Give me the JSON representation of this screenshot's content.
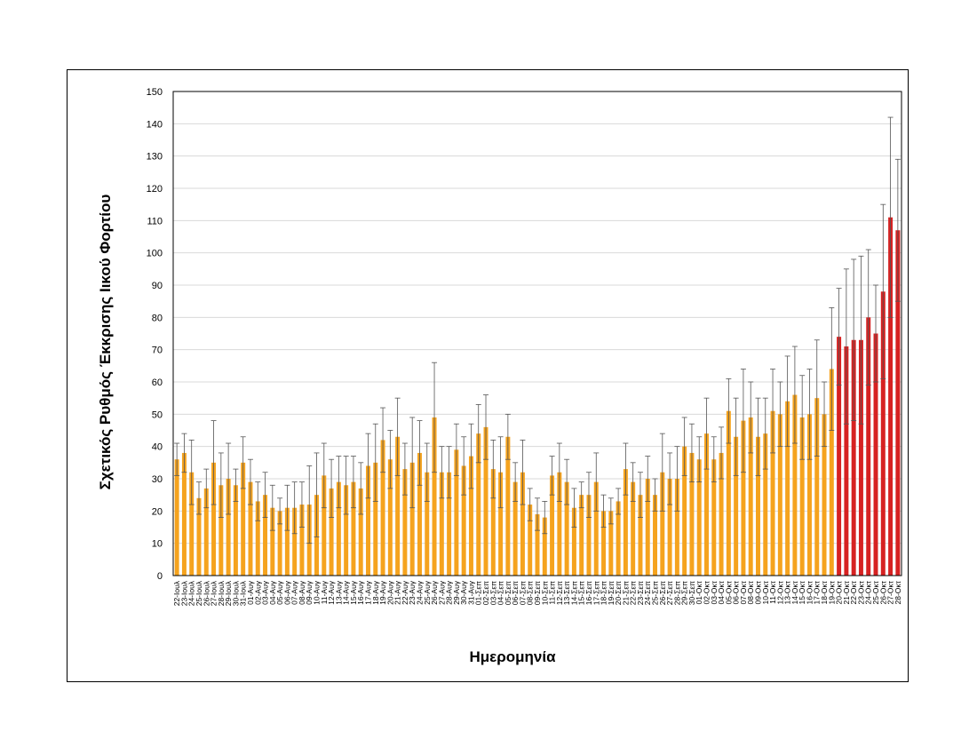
{
  "chart_data": {
    "type": "bar",
    "y_label": "Σχετικός Ρυθμός Έκκρισης Ιικού Φορτίου",
    "x_label": "Ημερομηνία",
    "categories": [
      "22-Ιουλ",
      "23-Ιουλ",
      "24-Ιουλ",
      "25-Ιουλ",
      "26-Ιουλ",
      "27-Ιουλ",
      "28-Ιουλ",
      "29-Ιουλ",
      "30-Ιουλ",
      "31-Ιουλ",
      "01-Αυγ",
      "02-Αυγ",
      "03-Αυγ",
      "04-Αυγ",
      "05-Αυγ",
      "06-Αυγ",
      "07-Αυγ",
      "08-Αυγ",
      "09-Αυγ",
      "10-Αυγ",
      "11-Αυγ",
      "12-Αυγ",
      "13-Αυγ",
      "14-Αυγ",
      "15-Αυγ",
      "16-Αυγ",
      "17-Αυγ",
      "18-Αυγ",
      "19-Αυγ",
      "20-Αυγ",
      "21-Αυγ",
      "22-Αυγ",
      "23-Αυγ",
      "24-Αυγ",
      "25-Αυγ",
      "26-Αυγ",
      "27-Αυγ",
      "28-Αυγ",
      "29-Αυγ",
      "30-Αυγ",
      "31-Αυγ",
      "01-Σεπ",
      "02-Σεπ",
      "03-Σεπ",
      "04-Σεπ",
      "05-Σεπ",
      "06-Σεπ",
      "07-Σεπ",
      "08-Σεπ",
      "09-Σεπ",
      "10-Σεπ",
      "11-Σεπ",
      "12-Σεπ",
      "13-Σεπ",
      "14-Σεπ",
      "15-Σεπ",
      "16-Σεπ",
      "17-Σεπ",
      "18-Σεπ",
      "19-Σεπ",
      "20-Σεπ",
      "21-Σεπ",
      "22-Σεπ",
      "23-Σεπ",
      "24-Σεπ",
      "25-Σεπ",
      "26-Σεπ",
      "27-Σεπ",
      "28-Σεπ",
      "29-Σεπ",
      "30-Σεπ",
      "01-Οκτ",
      "02-Οκτ",
      "03-Οκτ",
      "04-Οκτ",
      "05-Οκτ",
      "06-Οκτ",
      "07-Οκτ",
      "08-Οκτ",
      "09-Οκτ",
      "10-Οκτ",
      "11-Οκτ",
      "12-Οκτ",
      "13-Οκτ",
      "14-Οκτ",
      "15-Οκτ",
      "16-Οκτ",
      "17-Οκτ",
      "18-Οκτ",
      "19-Οκτ",
      "20-Οκτ",
      "21-Οκτ",
      "22-Οκτ",
      "23-Οκτ",
      "24-Οκτ",
      "25-Οκτ",
      "26-Οκτ",
      "27-Οκτ",
      "28-Οκτ"
    ],
    "values": [
      36,
      38,
      32,
      24,
      27,
      35,
      28,
      30,
      28,
      35,
      29,
      23,
      25,
      21,
      20,
      21,
      21,
      22,
      22,
      25,
      31,
      27,
      29,
      28,
      29,
      27,
      34,
      35,
      42,
      36,
      43,
      33,
      35,
      38,
      32,
      49,
      32,
      32,
      39,
      34,
      37,
      44,
      46,
      33,
      32,
      43,
      29,
      32,
      22,
      19,
      18,
      31,
      32,
      29,
      21,
      25,
      25,
      29,
      20,
      20,
      23,
      33,
      29,
      25,
      30,
      25,
      32,
      30,
      30,
      40,
      38,
      36,
      44,
      36,
      38,
      51,
      43,
      48,
      49,
      43,
      44,
      51,
      50,
      54,
      56,
      49,
      50,
      55,
      50,
      64,
      74,
      71,
      73,
      73,
      80,
      75,
      88,
      111,
      107
    ],
    "errors": [
      5,
      6,
      10,
      5,
      6,
      13,
      10,
      11,
      5,
      8,
      7,
      6,
      7,
      7,
      4,
      7,
      8,
      7,
      12,
      13,
      10,
      9,
      8,
      9,
      8,
      8,
      10,
      12,
      10,
      9,
      12,
      8,
      14,
      10,
      9,
      17,
      8,
      8,
      8,
      9,
      10,
      9,
      10,
      9,
      11,
      7,
      6,
      10,
      5,
      5,
      5,
      6,
      9,
      7,
      6,
      4,
      7,
      9,
      5,
      4,
      4,
      8,
      6,
      7,
      7,
      5,
      12,
      8,
      10,
      9,
      9,
      7,
      11,
      7,
      8,
      10,
      12,
      16,
      11,
      12,
      11,
      13,
      10,
      14,
      15,
      13,
      14,
      18,
      10,
      19,
      15,
      24,
      25,
      26,
      21,
      15,
      27,
      31,
      22
    ],
    "colors": [
      "#f5a31e",
      "#f5a31e",
      "#f5a31e",
      "#f5a31e",
      "#f5a31e",
      "#f5a31e",
      "#f5a31e",
      "#f5a31e",
      "#f5a31e",
      "#f5a31e",
      "#f5a31e",
      "#f5a31e",
      "#f5a31e",
      "#f5a31e",
      "#f5a31e",
      "#f5a31e",
      "#f5a31e",
      "#f5a31e",
      "#f5a31e",
      "#f5a31e",
      "#f5a31e",
      "#f5a31e",
      "#f5a31e",
      "#f5a31e",
      "#f5a31e",
      "#f5a31e",
      "#f5a31e",
      "#f5a31e",
      "#f5a31e",
      "#f5a31e",
      "#f5a31e",
      "#f5a31e",
      "#f5a31e",
      "#f5a31e",
      "#f5a31e",
      "#f5a31e",
      "#f5a31e",
      "#f5a31e",
      "#f5a31e",
      "#f5a31e",
      "#f5a31e",
      "#f5a31e",
      "#f5a31e",
      "#f5a31e",
      "#f5a31e",
      "#f5a31e",
      "#f5a31e",
      "#f5a31e",
      "#f5a31e",
      "#f5a31e",
      "#f5a31e",
      "#f5a31e",
      "#f5a31e",
      "#f5a31e",
      "#f5a31e",
      "#f5a31e",
      "#f5a31e",
      "#f5a31e",
      "#f5a31e",
      "#f5a31e",
      "#f5a31e",
      "#f5a31e",
      "#f5a31e",
      "#f5a31e",
      "#f5a31e",
      "#f5a31e",
      "#f5a31e",
      "#f5a31e",
      "#f5a31e",
      "#f5a31e",
      "#f5a31e",
      "#f5a31e",
      "#f5a31e",
      "#f5a31e",
      "#f5a31e",
      "#f5a31e",
      "#f5a31e",
      "#f5a31e",
      "#f5a31e",
      "#f5a31e",
      "#f5a31e",
      "#f5a31e",
      "#f5a31e",
      "#f5a31e",
      "#f5a31e",
      "#f5a31e",
      "#f5a31e",
      "#f5a31e",
      "#f5a31e",
      "#f5a31e",
      "#d62222",
      "#d62222",
      "#d62222",
      "#d62222",
      "#d62222",
      "#d62222",
      "#d62222",
      "#d62222",
      "#d62222"
    ],
    "ylim": [
      0,
      150
    ],
    "yticks": [
      0,
      10,
      20,
      30,
      40,
      50,
      60,
      70,
      80,
      90,
      100,
      110,
      120,
      130,
      140,
      150
    ],
    "grid": true
  }
}
